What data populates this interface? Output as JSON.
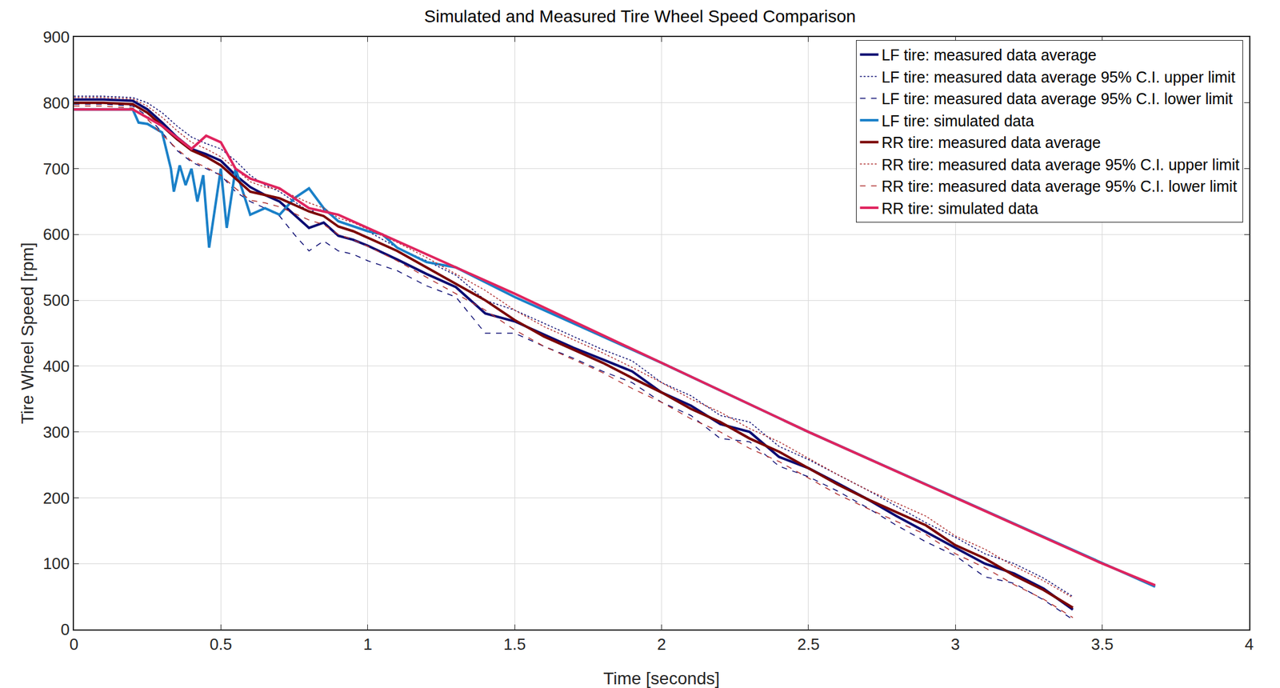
{
  "chart_data": {
    "type": "line",
    "title": "Simulated and Measured Tire Wheel Speed Comparison",
    "x_label": "Time [seconds]",
    "y_label": "Tire Wheel Speed [rpm]",
    "xlim": [
      0,
      4
    ],
    "xticks": [
      0,
      0.5,
      1,
      1.5,
      2,
      2.5,
      3,
      3.5,
      4
    ],
    "ylim": [
      0,
      900
    ],
    "yticks": [
      0,
      100,
      200,
      300,
      400,
      500,
      600,
      700,
      800,
      900
    ],
    "grid": true,
    "legend": "top right",
    "series": [
      {
        "name": "LF tire: measured data average",
        "color": "#0b0b72",
        "line_style": "solid",
        "x": [
          0,
          0.1,
          0.2,
          0.25,
          0.3,
          0.35,
          0.4,
          0.45,
          0.5,
          0.55,
          0.6,
          0.65,
          0.7,
          0.75,
          0.8,
          0.85,
          0.9,
          0.95,
          1.0,
          1.1,
          1.2,
          1.3,
          1.4,
          1.5,
          1.6,
          1.7,
          1.8,
          1.9,
          2.0,
          2.1,
          2.2,
          2.3,
          2.4,
          2.5,
          2.6,
          2.7,
          2.8,
          2.9,
          3.0,
          3.1,
          3.2,
          3.3,
          3.4
        ],
        "values": [
          805,
          805,
          803,
          790,
          770,
          748,
          730,
          722,
          712,
          690,
          672,
          660,
          650,
          630,
          610,
          618,
          598,
          592,
          583,
          562,
          540,
          520,
          480,
          468,
          448,
          428,
          410,
          392,
          360,
          340,
          312,
          300,
          262,
          245,
          222,
          198,
          172,
          148,
          125,
          100,
          85,
          62,
          30
        ]
      },
      {
        "name": "LF tire: measured data average 95% C.I. upper limit",
        "color": "#0b0b72",
        "line_style": "dot",
        "x": [
          0,
          0.1,
          0.2,
          0.25,
          0.3,
          0.35,
          0.4,
          0.45,
          0.5,
          0.55,
          0.6,
          0.65,
          0.7,
          0.75,
          0.8,
          0.85,
          0.9,
          0.95,
          1.0,
          1.1,
          1.2,
          1.3,
          1.4,
          1.5,
          1.6,
          1.7,
          1.8,
          1.9,
          2.0,
          2.1,
          2.2,
          2.3,
          2.4,
          2.5,
          2.6,
          2.7,
          2.8,
          2.9,
          3.0,
          3.1,
          3.2,
          3.3,
          3.4
        ],
        "values": [
          810,
          810,
          808,
          800,
          785,
          765,
          748,
          738,
          730,
          712,
          690,
          675,
          665,
          650,
          635,
          638,
          620,
          612,
          605,
          580,
          560,
          538,
          500,
          485,
          465,
          445,
          425,
          408,
          375,
          355,
          325,
          315,
          278,
          258,
          235,
          212,
          187,
          162,
          140,
          115,
          100,
          78,
          50
        ]
      },
      {
        "name": "LF tire: measured data average 95% C.I. lower limit",
        "color": "#0b0b72",
        "line_style": "dash",
        "x": [
          0,
          0.1,
          0.2,
          0.25,
          0.3,
          0.35,
          0.4,
          0.45,
          0.5,
          0.55,
          0.6,
          0.65,
          0.7,
          0.75,
          0.8,
          0.85,
          0.9,
          0.95,
          1.0,
          1.1,
          1.2,
          1.3,
          1.4,
          1.5,
          1.6,
          1.7,
          1.8,
          1.9,
          2.0,
          2.1,
          2.2,
          2.3,
          2.4,
          2.5,
          2.6,
          2.7,
          2.8,
          2.9,
          3.0,
          3.1,
          3.2,
          3.3,
          3.4
        ],
        "values": [
          798,
          798,
          795,
          780,
          755,
          728,
          710,
          700,
          690,
          665,
          650,
          640,
          628,
          600,
          575,
          590,
          575,
          570,
          560,
          545,
          522,
          505,
          450,
          450,
          430,
          412,
          392,
          375,
          345,
          325,
          290,
          285,
          248,
          232,
          210,
          185,
          158,
          133,
          112,
          80,
          70,
          45,
          15
        ]
      },
      {
        "name": "LF tire: simulated data",
        "color": "#1a80c8",
        "line_style": "solid",
        "x": [
          0,
          0.2,
          0.22,
          0.25,
          0.3,
          0.33,
          0.34,
          0.36,
          0.38,
          0.4,
          0.42,
          0.44,
          0.46,
          0.48,
          0.5,
          0.52,
          0.55,
          0.6,
          0.65,
          0.7,
          0.75,
          0.8,
          0.85,
          0.9,
          1.0,
          1.05,
          1.1,
          1.2,
          1.3,
          1.5,
          2.0,
          2.5,
          3.0,
          3.5,
          3.68
        ],
        "values": [
          790,
          790,
          770,
          768,
          755,
          700,
          665,
          705,
          675,
          700,
          650,
          690,
          580,
          640,
          700,
          610,
          700,
          630,
          640,
          630,
          655,
          670,
          640,
          620,
          605,
          600,
          580,
          558,
          550,
          505,
          405,
          300,
          200,
          100,
          65
        ]
      },
      {
        "name": "RR tire: measured data average",
        "color": "#7a0000",
        "line_style": "solid",
        "x": [
          0,
          0.1,
          0.2,
          0.25,
          0.3,
          0.35,
          0.4,
          0.45,
          0.5,
          0.55,
          0.6,
          0.65,
          0.7,
          0.75,
          0.8,
          0.85,
          0.9,
          0.95,
          1.0,
          1.1,
          1.2,
          1.3,
          1.4,
          1.5,
          1.6,
          1.7,
          1.8,
          1.9,
          2.0,
          2.1,
          2.2,
          2.3,
          2.4,
          2.5,
          2.6,
          2.7,
          2.8,
          2.9,
          3.0,
          3.1,
          3.2,
          3.3,
          3.4
        ],
        "values": [
          800,
          800,
          798,
          785,
          765,
          745,
          728,
          718,
          705,
          685,
          665,
          660,
          655,
          645,
          635,
          628,
          612,
          605,
          595,
          575,
          550,
          525,
          500,
          470,
          445,
          425,
          405,
          382,
          360,
          335,
          315,
          290,
          270,
          245,
          220,
          198,
          178,
          158,
          128,
          108,
          82,
          60,
          33
        ]
      },
      {
        "name": "RR tire: measured data average 95% C.I. upper limit",
        "color": "#b03030",
        "line_style": "dot",
        "x": [
          0,
          0.1,
          0.2,
          0.25,
          0.3,
          0.35,
          0.4,
          0.45,
          0.5,
          0.55,
          0.6,
          0.65,
          0.7,
          0.75,
          0.8,
          0.85,
          0.9,
          0.95,
          1.0,
          1.1,
          1.2,
          1.3,
          1.4,
          1.5,
          1.6,
          1.7,
          1.8,
          1.9,
          2.0,
          2.1,
          2.2,
          2.3,
          2.4,
          2.5,
          2.6,
          2.7,
          2.8,
          2.9,
          3.0,
          3.1,
          3.2,
          3.3,
          3.4
        ],
        "values": [
          808,
          808,
          806,
          795,
          778,
          758,
          740,
          730,
          718,
          700,
          680,
          672,
          668,
          658,
          648,
          640,
          625,
          618,
          608,
          588,
          565,
          540,
          515,
          485,
          460,
          440,
          420,
          398,
          375,
          350,
          330,
          305,
          285,
          260,
          235,
          212,
          192,
          172,
          142,
          122,
          96,
          74,
          48
        ]
      },
      {
        "name": "RR tire: measured data average 95% C.I. lower limit",
        "color": "#b03030",
        "line_style": "dash",
        "x": [
          0,
          0.1,
          0.2,
          0.25,
          0.3,
          0.35,
          0.4,
          0.45,
          0.5,
          0.55,
          0.6,
          0.65,
          0.7,
          0.75,
          0.8,
          0.85,
          0.9,
          0.95,
          1.0,
          1.1,
          1.2,
          1.3,
          1.4,
          1.5,
          1.6,
          1.7,
          1.8,
          1.9,
          2.0,
          2.1,
          2.2,
          2.3,
          2.4,
          2.5,
          2.6,
          2.7,
          2.8,
          2.9,
          3.0,
          3.1,
          3.2,
          3.3,
          3.4
        ],
        "values": [
          795,
          795,
          792,
          775,
          752,
          730,
          712,
          702,
          690,
          670,
          652,
          648,
          642,
          632,
          622,
          615,
          600,
          592,
          582,
          560,
          535,
          510,
          485,
          455,
          430,
          410,
          390,
          366,
          345,
          320,
          300,
          275,
          255,
          230,
          205,
          184,
          164,
          144,
          115,
          94,
          68,
          46,
          18
        ]
      },
      {
        "name": "RR tire: simulated data",
        "color": "#e0245e",
        "line_style": "solid",
        "x": [
          0,
          0.2,
          0.3,
          0.4,
          0.45,
          0.5,
          0.55,
          0.6,
          0.7,
          0.8,
          0.9,
          1.0,
          1.5,
          2.0,
          2.5,
          3.0,
          3.5,
          3.68
        ],
        "values": [
          790,
          790,
          765,
          730,
          750,
          740,
          700,
          685,
          670,
          640,
          630,
          610,
          510,
          405,
          300,
          200,
          100,
          67
        ]
      }
    ]
  }
}
